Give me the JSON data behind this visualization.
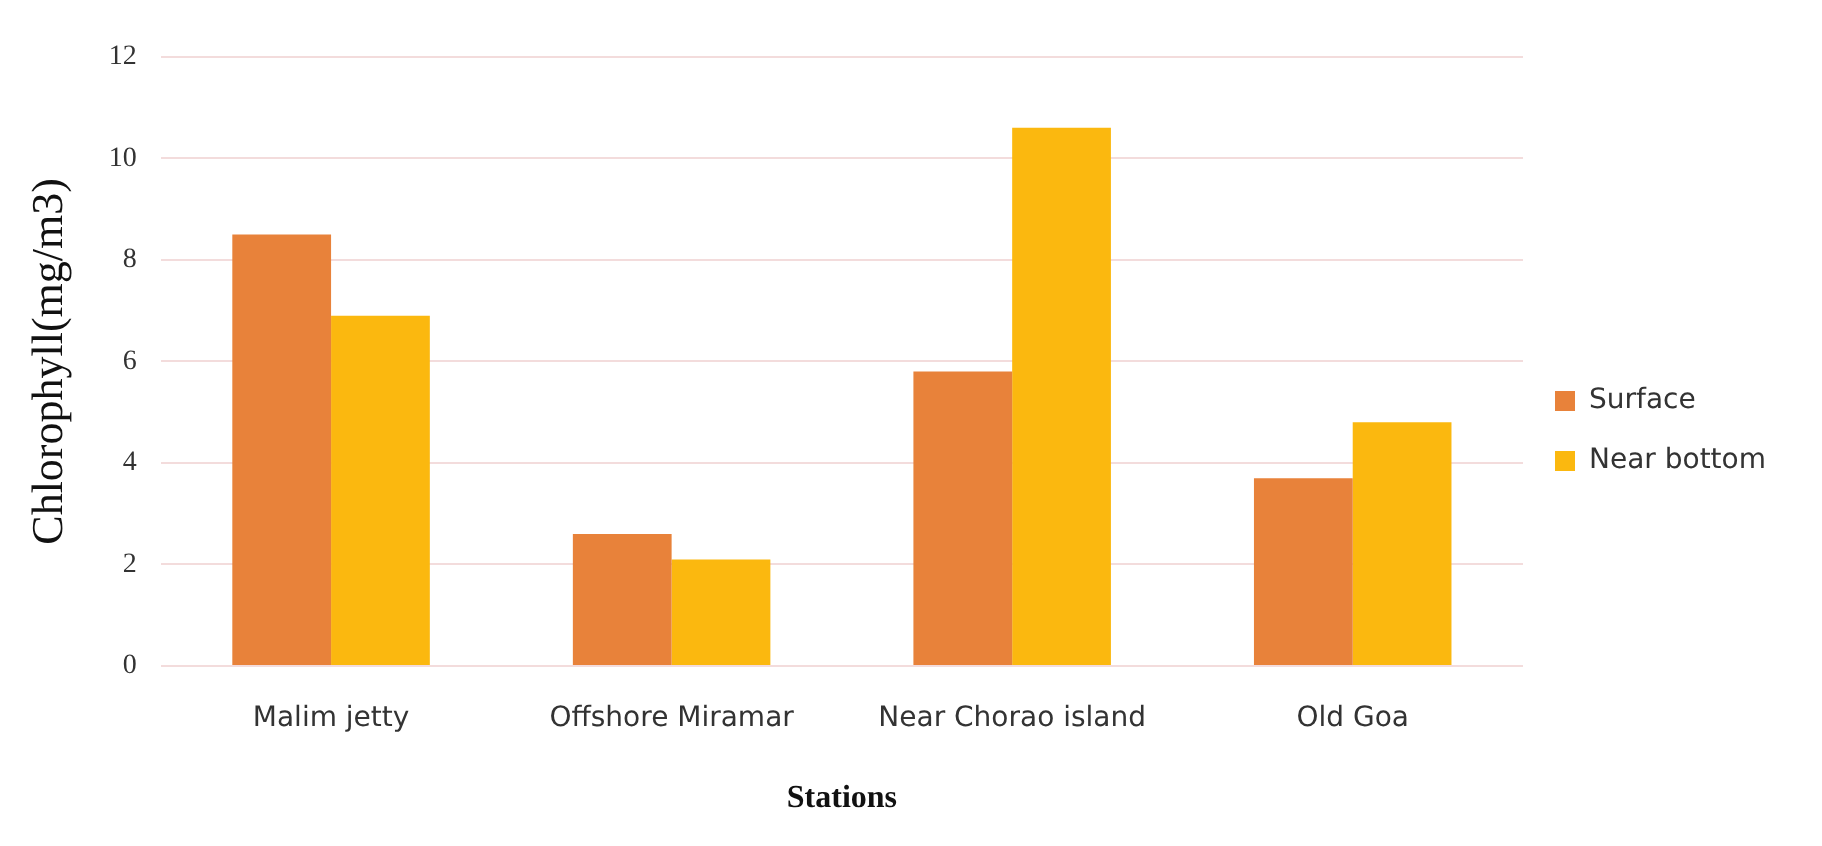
{
  "chart_data": {
    "type": "bar",
    "xlabel": "Stations",
    "ylabel": "Chlorophyll(mg/m3)",
    "categories": [
      "Malim jetty",
      "Offshore Miramar",
      "Near Chorao island",
      "Old Goa"
    ],
    "series": [
      {
        "name": "Surface",
        "color": "#e8823a",
        "values": [
          8.5,
          2.6,
          5.8,
          3.7
        ]
      },
      {
        "name": "Near bottom",
        "color": "#fbb80f",
        "values": [
          6.9,
          2.1,
          10.6,
          4.8
        ]
      }
    ],
    "ylim": [
      0,
      12
    ],
    "yticks": [
      0,
      2,
      4,
      6,
      8,
      10,
      12
    ],
    "grid": "y",
    "legend": "right"
  }
}
